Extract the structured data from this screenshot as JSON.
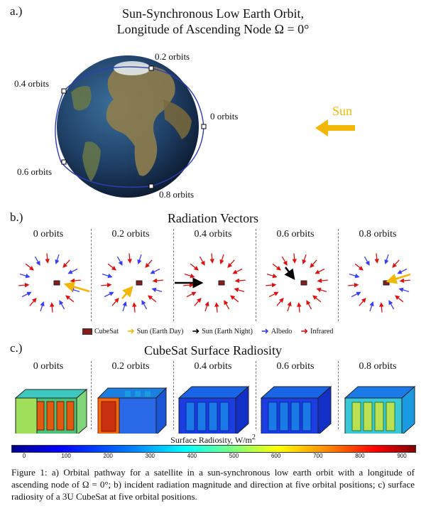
{
  "panel_a": {
    "label": "a.)",
    "title_line1": "Sun-Synchronous Low Earth Orbit,",
    "title_line2": "Longitude of Ascending Node Ω = 0°",
    "orbit_labels": {
      "o00": "0 orbits",
      "o02": "0.2 orbits",
      "o04": "0.4 orbits",
      "o06": "0.6 orbits",
      "o08": "0.8 orbits"
    },
    "sun_label": "Sun",
    "colors": {
      "orbit": "#2f3db8",
      "sun": "#f2b705",
      "ocean": "#1f3f66",
      "land": "#8a7a4a"
    }
  },
  "panel_b": {
    "label": "b.)",
    "title": "Radiation Vectors",
    "columns": [
      "0 orbits",
      "0.2 orbits",
      "0.4 orbits",
      "0.6 orbits",
      "0.8 orbits"
    ],
    "legend": {
      "cubesat": "CubeSat",
      "sun_day": "Sun (Earth Day)",
      "sun_night": "Sun (Earth Night)",
      "albedo": "Albedo",
      "infrared": "Infrared"
    },
    "colors": {
      "sun_day": "#f2b705",
      "sun_night": "#000000",
      "albedo": "#3b3bff",
      "infrared": "#e01010"
    }
  },
  "panel_c": {
    "label": "c.)",
    "title": "CubeSat Surface Radiosity",
    "columns": [
      "0 orbits",
      "0.2 orbits",
      "0.4 orbits",
      "0.6 orbits",
      "0.8 orbits"
    ],
    "colorbar": {
      "title": "Surface Radiosity, W/m",
      "title_sup": "2",
      "ticks": [
        "0",
        "100",
        "200",
        "300",
        "400",
        "500",
        "600",
        "700",
        "800",
        "900"
      ],
      "min": 0,
      "max": 900
    }
  },
  "caption": "Figure 1: a) Orbital pathway for a satellite in a sun-synchronous low earth orbit with a longitude of ascending node of Ω = 0°; b) incident radiation magnitude and direction at five orbital positions; c) surface radiosity of a 3U CubeSat at five orbital positions."
}
